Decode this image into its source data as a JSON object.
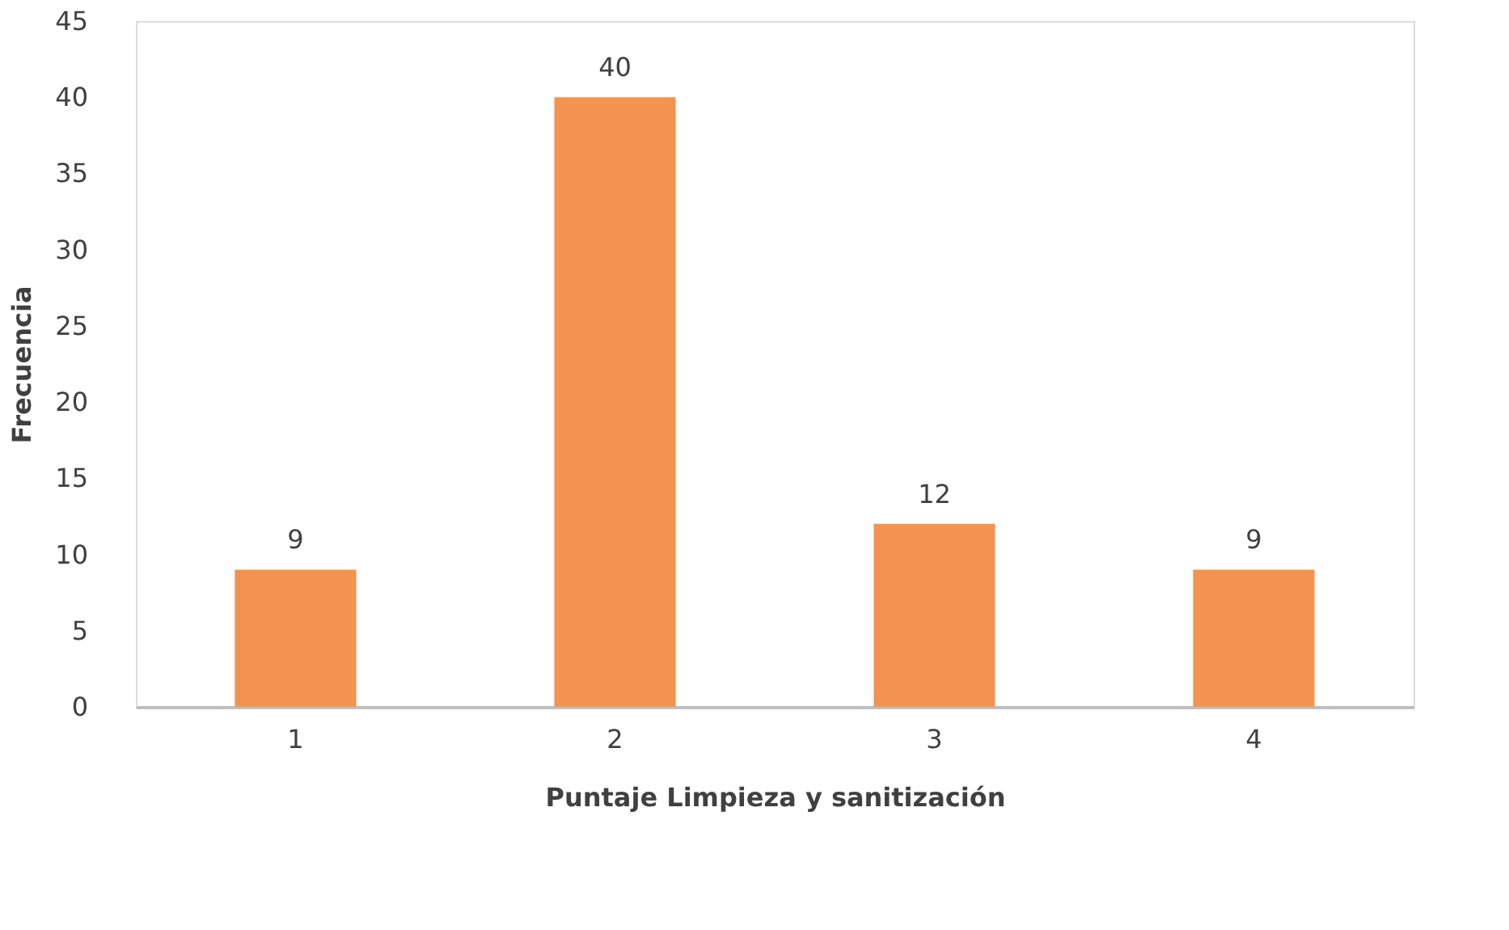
{
  "chart_data": {
    "type": "bar",
    "xlabel": "Puntaje Limpieza y sanitización",
    "ylabel": "Frecuencia",
    "categories": [
      "1",
      "2",
      "3",
      "4"
    ],
    "values": [
      9,
      40,
      12,
      9
    ],
    "color": "#f4924f",
    "ylim": [
      0,
      45
    ],
    "yticks": [
      0,
      5,
      10,
      15,
      20,
      25,
      30,
      35,
      40,
      45
    ],
    "grid": false,
    "data_labels": true
  }
}
